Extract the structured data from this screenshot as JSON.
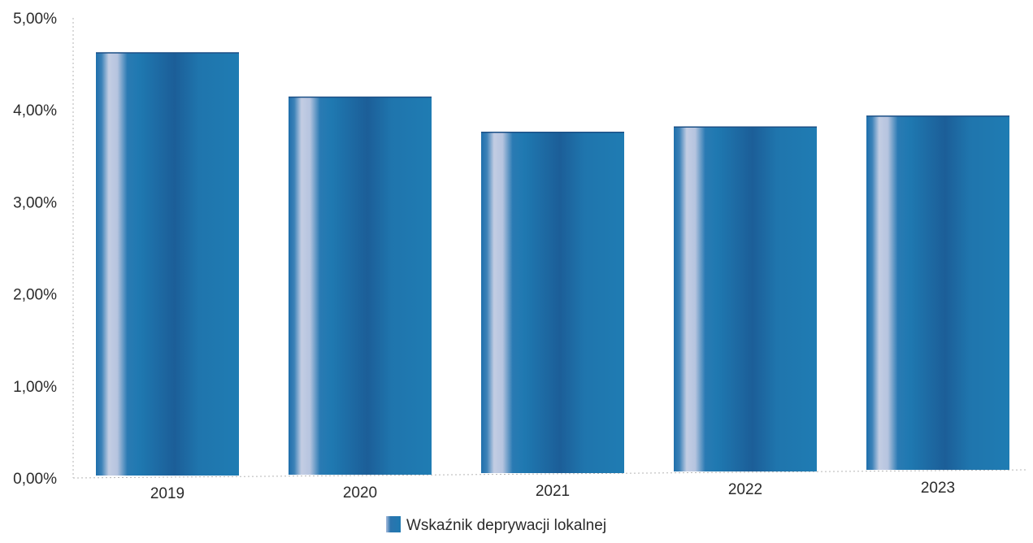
{
  "chart_data": {
    "type": "bar",
    "categories": [
      "2019",
      "2020",
      "2021",
      "2022",
      "2023"
    ],
    "series": [
      {
        "name": "Wskaźnik deprywacji lokalnej",
        "values": [
          4.62,
          4.13,
          3.73,
          3.77,
          3.87
        ]
      }
    ],
    "title": "",
    "xlabel": "",
    "ylabel": "",
    "ylim": [
      0,
      5
    ],
    "y_ticks": [
      "0,00%",
      "1,00%",
      "2,00%",
      "3,00%",
      "4,00%",
      "5,00%"
    ],
    "y_unit": "%",
    "grid": false,
    "legend_position": "bottom",
    "colors": {
      "bar": "#1f78b0",
      "bar_dark": "#1d5f98",
      "bar_highlight": "#c9d3e6",
      "axis": "#9a9a9a",
      "text": "#2b2b2b"
    }
  }
}
